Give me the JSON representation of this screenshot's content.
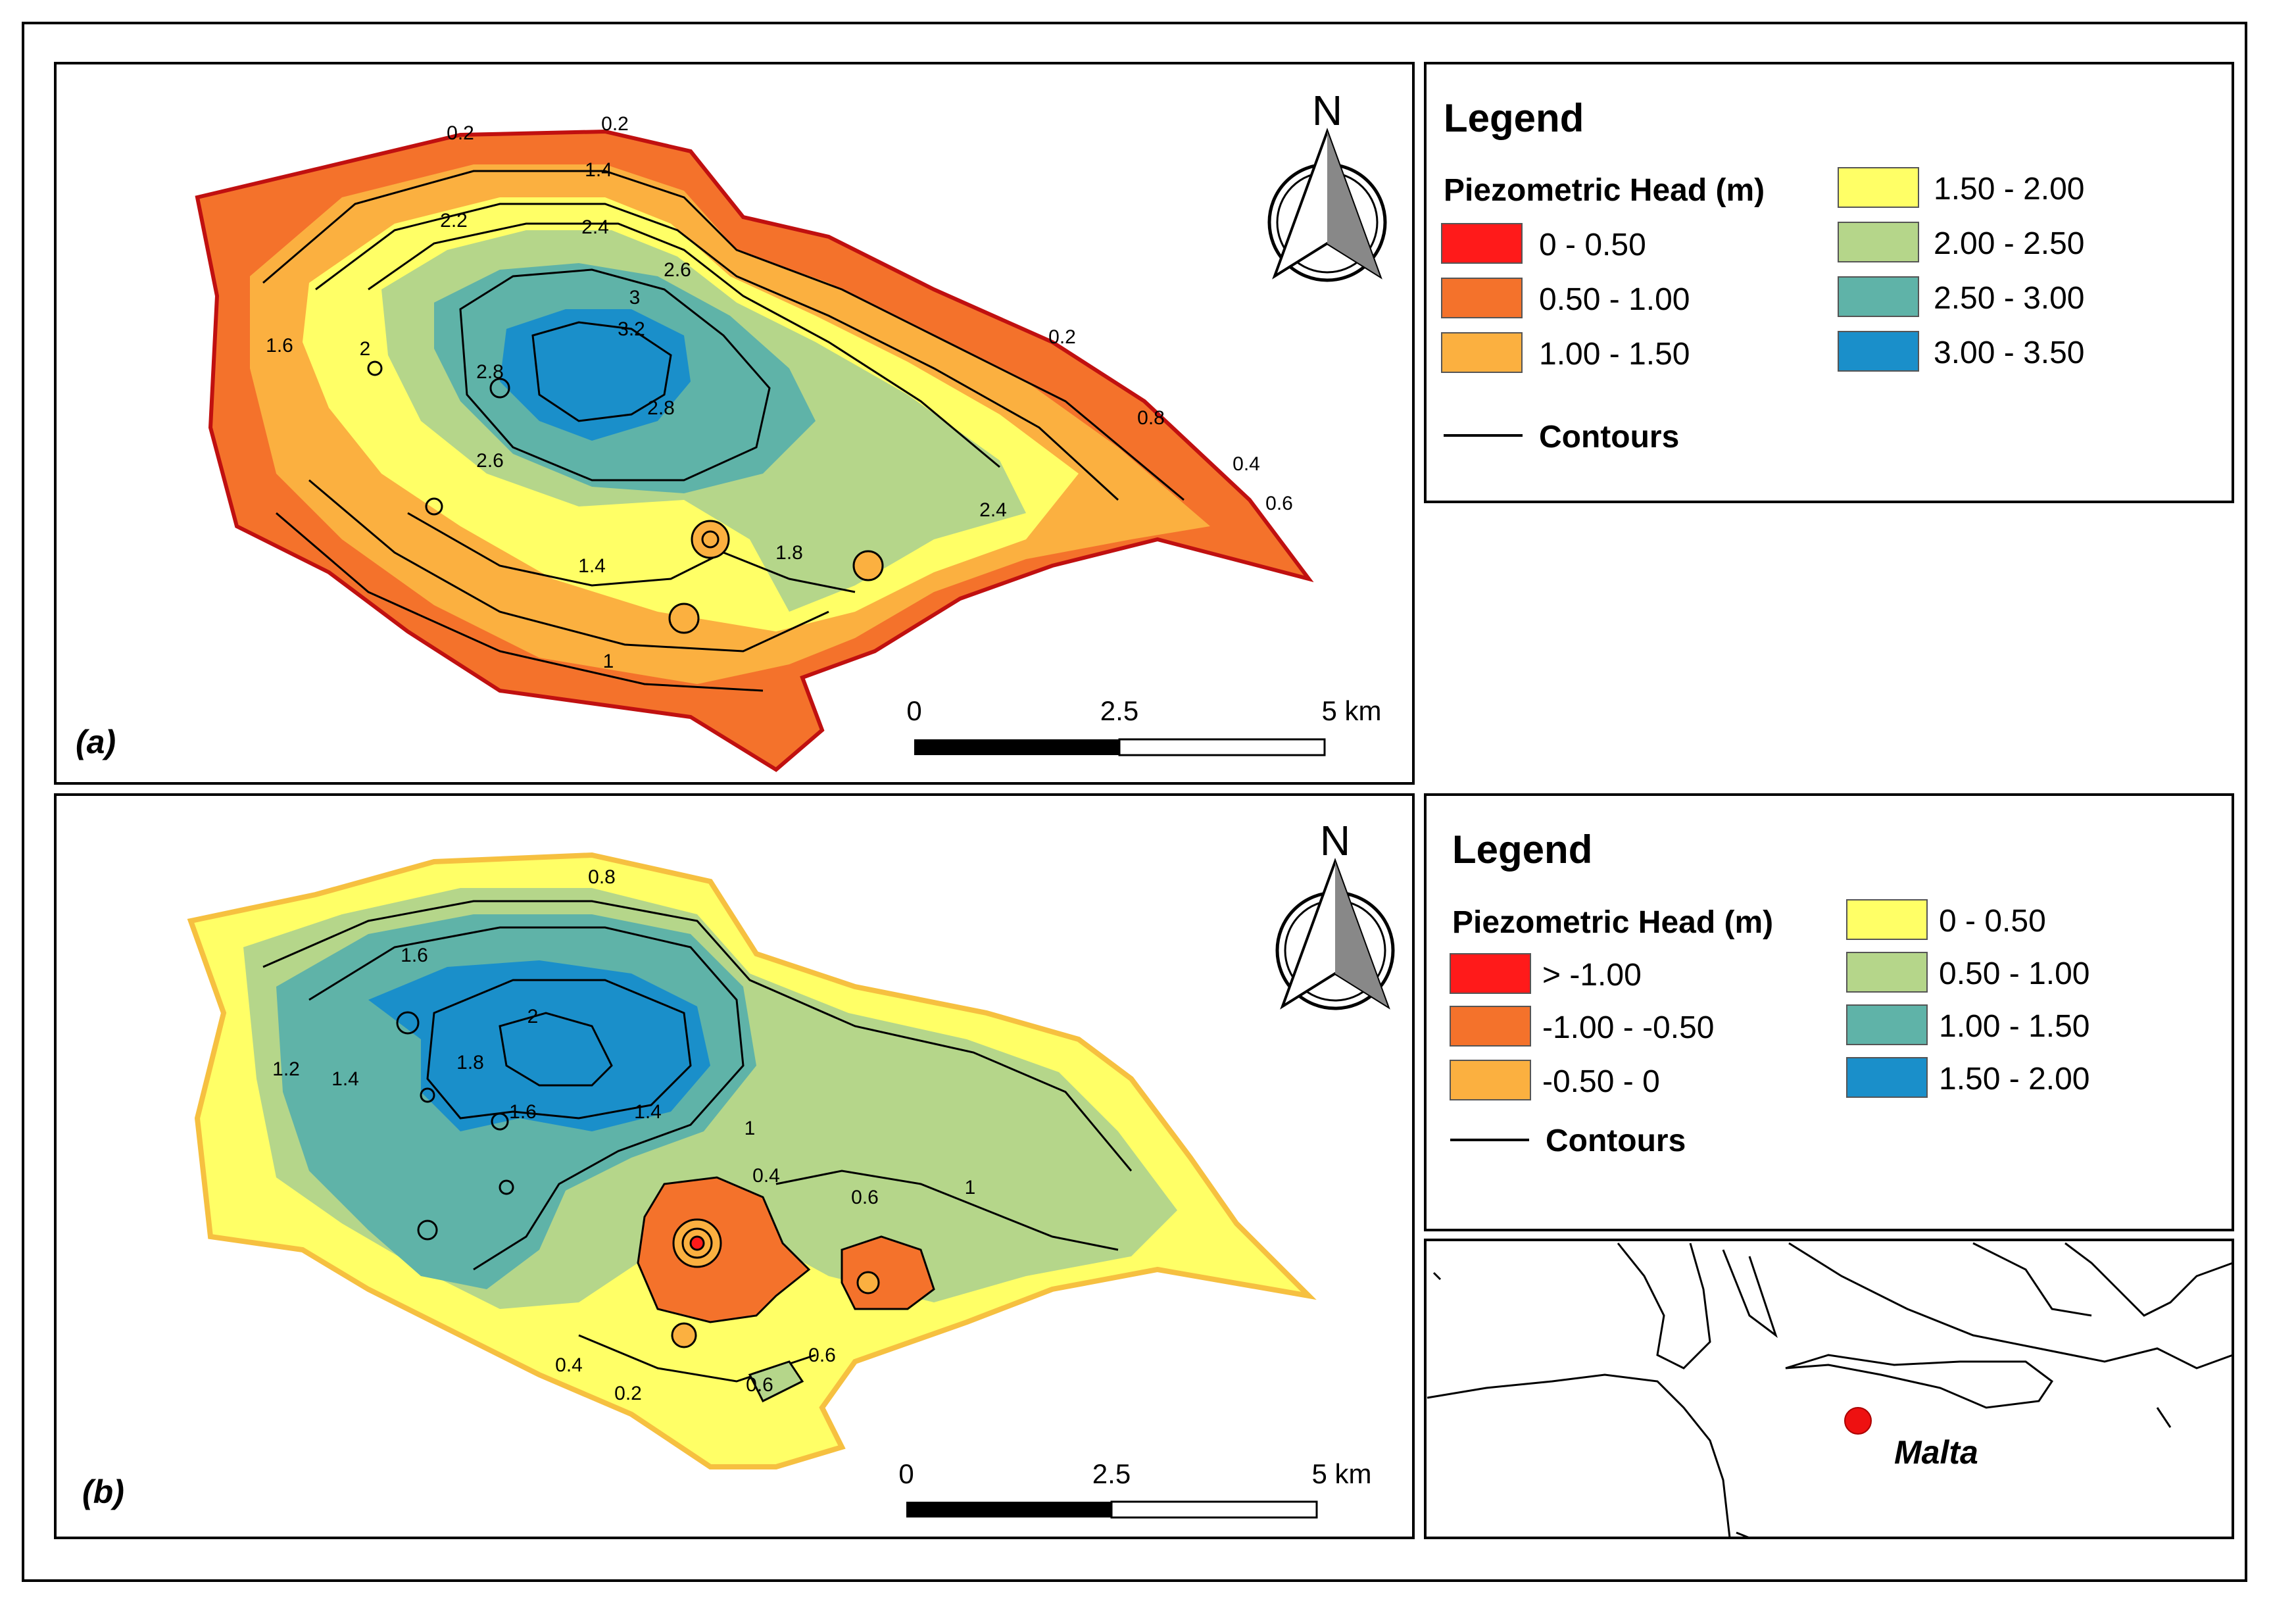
{
  "panel_a": {
    "label": "(a)",
    "north": "N",
    "scale": [
      "0",
      "2.5",
      "5 km"
    ],
    "legend": {
      "title": "Legend",
      "subtitle": "Piezometric Head (m)",
      "classes": [
        {
          "label": "0 - 0.50",
          "color": "#ff1a1a"
        },
        {
          "label": "0.50 - 1.00",
          "color": "#f4722b"
        },
        {
          "label": "1.00 - 1.50",
          "color": "#fbb040"
        },
        {
          "label": "1.50 - 2.00",
          "color": "#ffff66"
        },
        {
          "label": "2.00 - 2.50",
          "color": "#b5d68a"
        },
        {
          "label": "2.50 - 3.00",
          "color": "#5fb3a8"
        },
        {
          "label": "3.00 - 3.50",
          "color": "#1a8fca"
        }
      ],
      "contours": "Contours"
    },
    "contour_labels": [
      "0.2",
      "0.2",
      "1.4",
      "2.2",
      "2.4",
      "2.6",
      "3",
      "3.2",
      "2.8",
      "2.8",
      "2.6",
      "2",
      "1.6",
      "0.2",
      "0.8",
      "0.4",
      "0.6",
      "2.4",
      "1.8",
      "1.4",
      "1"
    ]
  },
  "panel_b": {
    "label": "(b)",
    "north": "N",
    "scale": [
      "0",
      "2.5",
      "5 km"
    ],
    "legend": {
      "title": "Legend",
      "subtitle": "Piezometric Head (m)",
      "classes": [
        {
          "label": "> -1.00",
          "color": "#ff1a1a"
        },
        {
          "label": "-1.00 - -0.50",
          "color": "#f4722b"
        },
        {
          "label": "-0.50 - 0",
          "color": "#fbb040"
        },
        {
          "label": "0 - 0.50",
          "color": "#ffff66"
        },
        {
          "label": "0.50 - 1.00",
          "color": "#b5d68a"
        },
        {
          "label": "1.00 - 1.50",
          "color": "#5fb3a8"
        },
        {
          "label": "1.50 - 2.00",
          "color": "#1a8fca"
        }
      ],
      "contours": "Contours"
    },
    "contour_labels": [
      "0.8",
      "1.6",
      "2",
      "1.8",
      "1.6",
      "1.4",
      "1.4",
      "1.2",
      "1",
      "0.4",
      "0.6",
      "1",
      "0.4",
      "0.2",
      "0.6",
      "0.6"
    ]
  },
  "inset": {
    "label": "Malta",
    "marker_color": "#ee1111"
  }
}
